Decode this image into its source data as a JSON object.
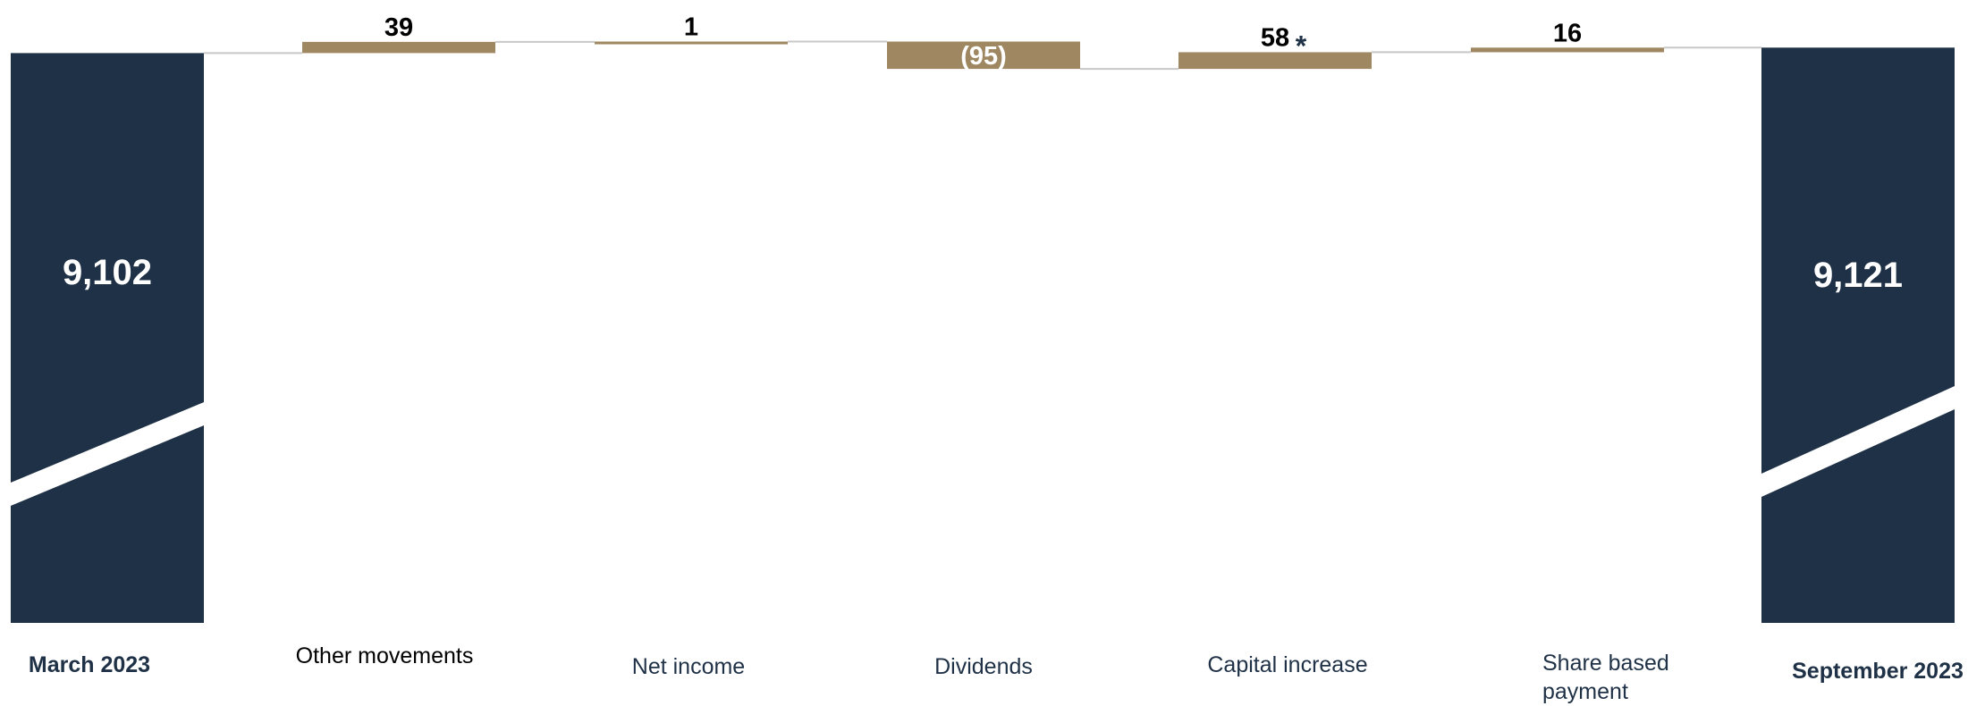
{
  "colors": {
    "total": "#1f3146",
    "change": "#9e8761",
    "connector": "#c8c8c8",
    "white": "#ffffff"
  },
  "chart_data": {
    "type": "bar",
    "subtype": "waterfall",
    "axis_break": true,
    "categories": [
      "March 2023",
      "Other movements",
      "Net income",
      "Dividends",
      "Capital increase",
      "Share based payment",
      "September 2023"
    ],
    "values": [
      9102,
      39,
      1,
      -95,
      58,
      16,
      9121
    ],
    "kinds": [
      "total",
      "delta",
      "delta",
      "delta",
      "delta",
      "delta",
      "total"
    ],
    "data_labels": [
      "9,102",
      "39",
      "1",
      "(95)",
      "58",
      "16",
      "9,121"
    ],
    "annotations": [
      {
        "category": "Capital increase",
        "text": "*"
      }
    ]
  }
}
